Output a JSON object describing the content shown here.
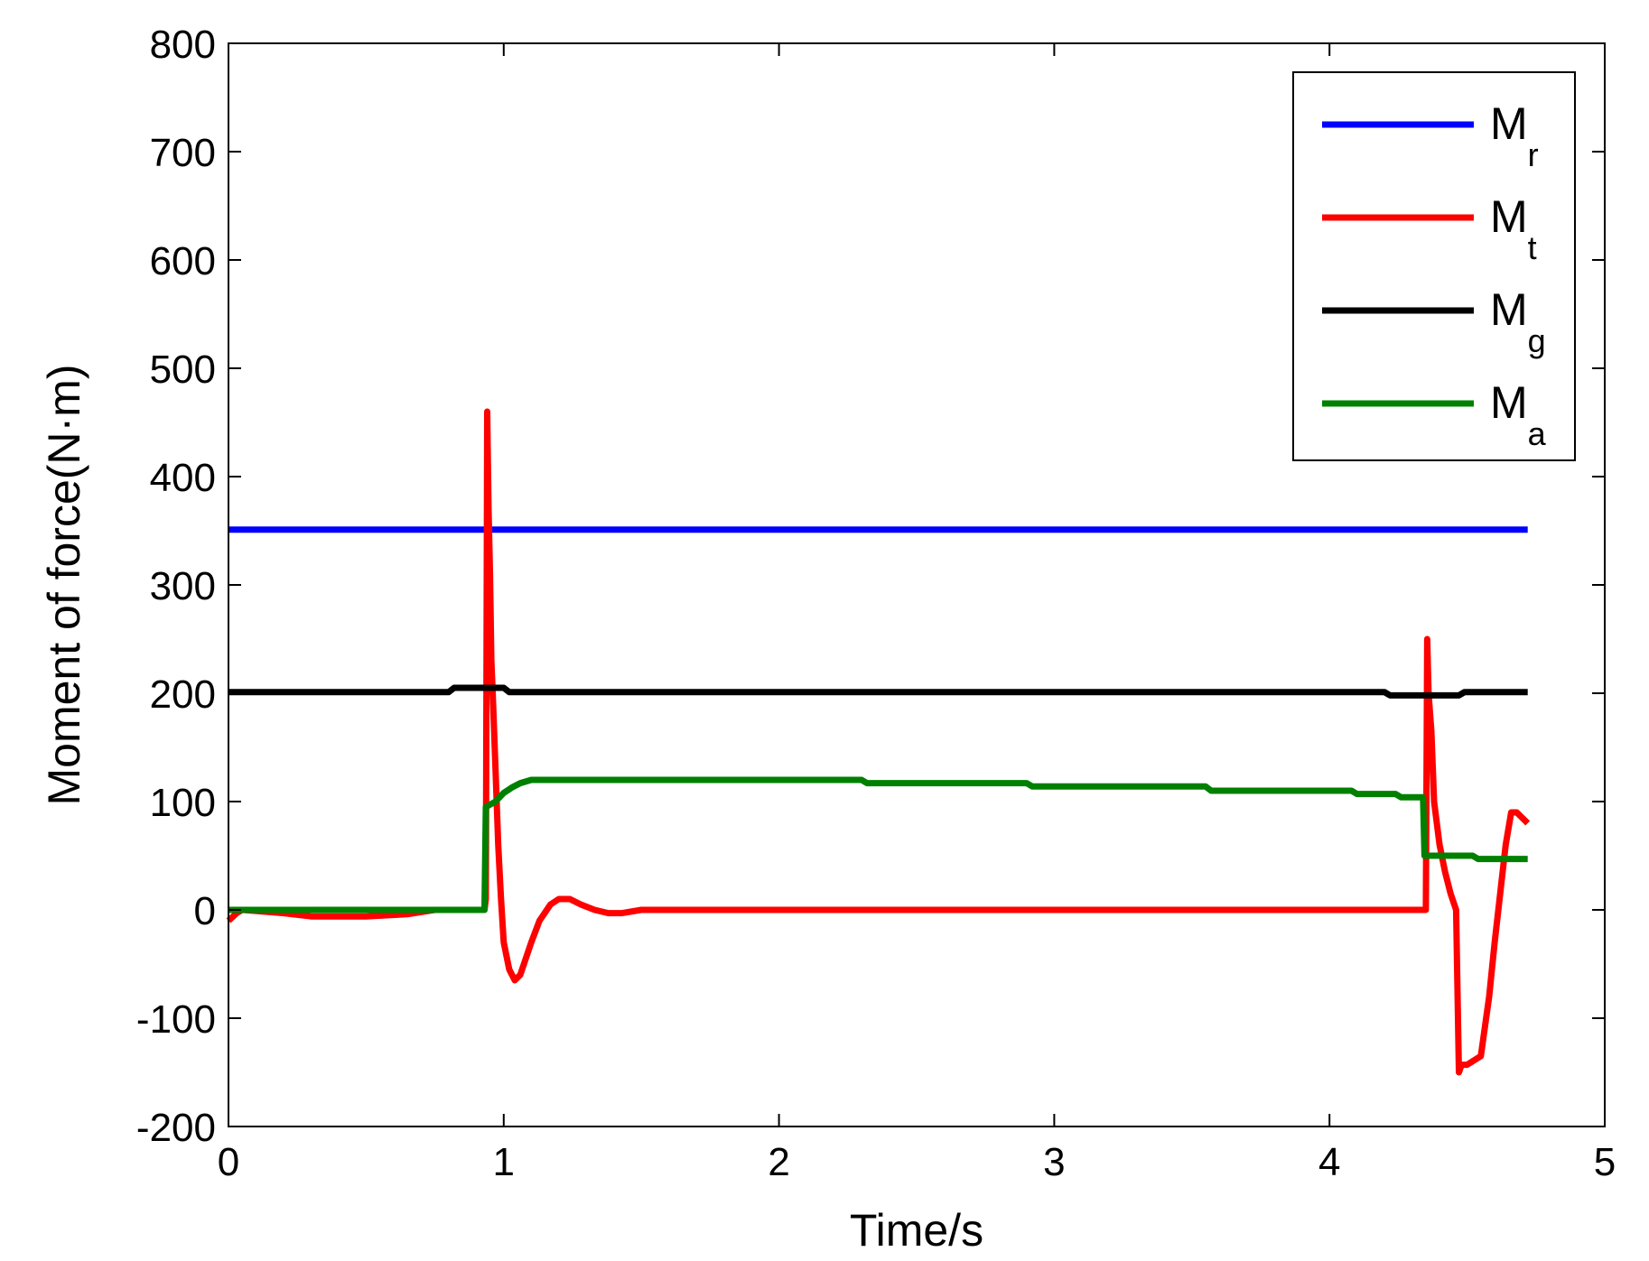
{
  "chart_data": {
    "type": "line",
    "xlabel": "Time/s",
    "ylabel": "Moment of force(N·m)",
    "xlim": [
      0,
      5
    ],
    "ylim": [
      -200,
      800
    ],
    "xticks": [
      0,
      1,
      2,
      3,
      4,
      5
    ],
    "yticks": [
      -200,
      -100,
      0,
      100,
      200,
      300,
      400,
      500,
      600,
      700,
      800
    ],
    "xtick_labels": [
      "0",
      "1",
      "2",
      "3",
      "4",
      "5"
    ],
    "ytick_labels": [
      "-200",
      "-100",
      "0",
      "100",
      "200",
      "300",
      "400",
      "500",
      "600",
      "700",
      "800"
    ],
    "grid": false,
    "legend_position": "top-right",
    "series": [
      {
        "name": "Mr",
        "label_main": "M",
        "label_sub": "r",
        "color": "#0000ff",
        "x": [
          0,
          4.72
        ],
        "y": [
          351,
          351
        ]
      },
      {
        "name": "Mt",
        "label_main": "M",
        "label_sub": "t",
        "color": "#ff0000",
        "x": [
          0,
          0.03,
          0.05,
          0.2,
          0.3,
          0.5,
          0.65,
          0.75,
          0.93,
          0.935,
          0.94,
          0.945,
          0.95,
          0.955,
          0.96,
          0.97,
          0.98,
          0.99,
          1.0,
          1.02,
          1.04,
          1.06,
          1.08,
          1.1,
          1.13,
          1.17,
          1.2,
          1.24,
          1.28,
          1.33,
          1.38,
          1.43,
          1.5,
          1.55,
          2.0,
          3.0,
          4.0,
          4.34,
          4.35,
          4.355,
          4.36,
          4.37,
          4.38,
          4.4,
          4.42,
          4.44,
          4.46,
          4.47,
          4.48,
          4.5,
          4.55,
          4.58,
          4.6,
          4.62,
          4.64,
          4.66,
          4.68,
          4.7,
          4.72
        ],
        "y": [
          -10,
          -3,
          0,
          -3,
          -6,
          -6,
          -4,
          0,
          0,
          10,
          460,
          370,
          310,
          230,
          200,
          130,
          60,
          10,
          -30,
          -55,
          -65,
          -60,
          -45,
          -30,
          -10,
          5,
          10,
          10,
          5,
          0,
          -3,
          -3,
          0,
          0,
          0,
          0,
          0,
          0,
          0,
          250,
          200,
          165,
          100,
          60,
          35,
          15,
          0,
          -150,
          -143,
          -143,
          -135,
          -80,
          -30,
          15,
          60,
          90,
          90,
          85,
          80
        ]
      },
      {
        "name": "Mg",
        "label_main": "M",
        "label_sub": "g",
        "color": "#000000",
        "x": [
          0,
          0.8,
          0.82,
          1.0,
          1.02,
          4.2,
          4.22,
          4.47,
          4.49,
          4.72
        ],
        "y": [
          201,
          201,
          205,
          205,
          201,
          201,
          198,
          198,
          201,
          201
        ]
      },
      {
        "name": "Ma",
        "label_main": "M",
        "label_sub": "a",
        "color": "#008000",
        "x": [
          0,
          0.93,
          0.935,
          0.97,
          1.0,
          1.03,
          1.06,
          1.1,
          2.3,
          2.32,
          2.9,
          2.92,
          3.55,
          3.57,
          4.08,
          4.1,
          4.24,
          4.26,
          4.34,
          4.345,
          4.52,
          4.54,
          4.72
        ],
        "y": [
          0,
          0,
          95,
          100,
          108,
          113,
          117,
          120,
          120,
          117,
          117,
          114,
          114,
          110,
          110,
          107,
          107,
          104,
          104,
          50,
          50,
          47,
          47
        ]
      }
    ]
  }
}
